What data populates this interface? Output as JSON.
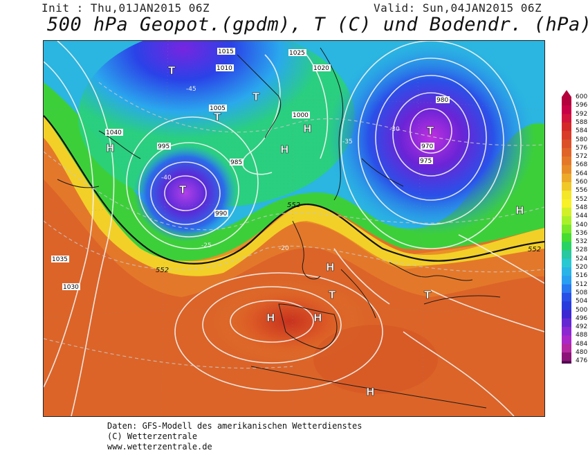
{
  "header": {
    "init_text": "Init : Thu,01JAN2015 06Z",
    "valid_text": "Valid: Sun,04JAN2015 06Z",
    "title": "500 hPa Geopot.(gpdm), T (C) und Bodendr. (hPa)"
  },
  "footer": {
    "line1": "Daten: GFS-Modell des amerikanischen Wetterdienstes",
    "line2": "(C) Wetterzentrale",
    "line3": "www.wetterzentrale.de"
  },
  "legend": {
    "values": [
      "600",
      "596",
      "592",
      "588",
      "584",
      "580",
      "576",
      "572",
      "568",
      "564",
      "560",
      "556",
      "552",
      "548",
      "544",
      "540",
      "536",
      "532",
      "528",
      "524",
      "520",
      "516",
      "512",
      "508",
      "504",
      "500",
      "496",
      "492",
      "488",
      "484",
      "480",
      "476"
    ],
    "colors": [
      "#b4003c",
      "#c80046",
      "#d2143c",
      "#d42828",
      "#d83c28",
      "#dc5028",
      "#e06428",
      "#e47828",
      "#e88c28",
      "#ecaa28",
      "#f0c828",
      "#f4e628",
      "#f8f028",
      "#d2f028",
      "#aaf028",
      "#78e828",
      "#46dc32",
      "#28d264",
      "#28c8a0",
      "#28c8d2",
      "#28b4e6",
      "#289ff0",
      "#2878f0",
      "#2850e6",
      "#283cdc",
      "#3c28d2",
      "#6428d2",
      "#8c28d2",
      "#aa28c8",
      "#b428a0",
      "#8c1478",
      "#500a50"
    ]
  },
  "map": {
    "isobar_labels": [
      "1015",
      "1025",
      "1010",
      "1020",
      "1005",
      "1000",
      "995",
      "990",
      "985",
      "980",
      "975",
      "970",
      "1035",
      "1040",
      "1030"
    ],
    "temp_labels": [
      "-40",
      "-45",
      "-35",
      "-30",
      "-25",
      "-20"
    ],
    "geopot_labels": [
      "552"
    ],
    "pressure_centers": [
      {
        "label": "T"
      },
      {
        "label": "T"
      },
      {
        "label": "T"
      },
      {
        "label": "T"
      },
      {
        "label": "T"
      },
      {
        "label": "T"
      },
      {
        "label": "T"
      },
      {
        "label": "H"
      },
      {
        "label": "H"
      },
      {
        "label": "H"
      },
      {
        "label": "H"
      },
      {
        "label": "H"
      },
      {
        "label": "H"
      },
      {
        "label": "H"
      },
      {
        "label": "H"
      }
    ]
  }
}
